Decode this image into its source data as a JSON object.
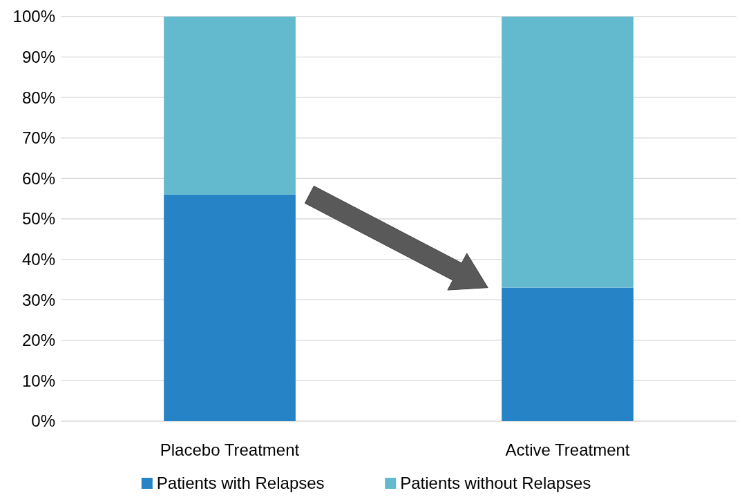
{
  "chart_data": {
    "type": "bar",
    "stacked": true,
    "categories": [
      "Placebo Treatment",
      "Active Treatment"
    ],
    "series": [
      {
        "name": "Patients with Relapses",
        "color": "#2683c6",
        "values": [
          56,
          33
        ]
      },
      {
        "name": "Patients without Relapses",
        "color": "#63bacf",
        "values": [
          44,
          67
        ]
      }
    ],
    "ylim": [
      0,
      100
    ],
    "yticks": [
      {
        "value": 0,
        "label": "0%"
      },
      {
        "value": 10,
        "label": "10%"
      },
      {
        "value": 20,
        "label": "20%"
      },
      {
        "value": 30,
        "label": "30%"
      },
      {
        "value": 40,
        "label": "40%"
      },
      {
        "value": 50,
        "label": "50%"
      },
      {
        "value": 60,
        "label": "60%"
      },
      {
        "value": 70,
        "label": "70%"
      },
      {
        "value": 80,
        "label": "80%"
      },
      {
        "value": 90,
        "label": "90%"
      },
      {
        "value": 100,
        "label": "100%"
      }
    ],
    "grid": "y",
    "legend": "bottom"
  }
}
